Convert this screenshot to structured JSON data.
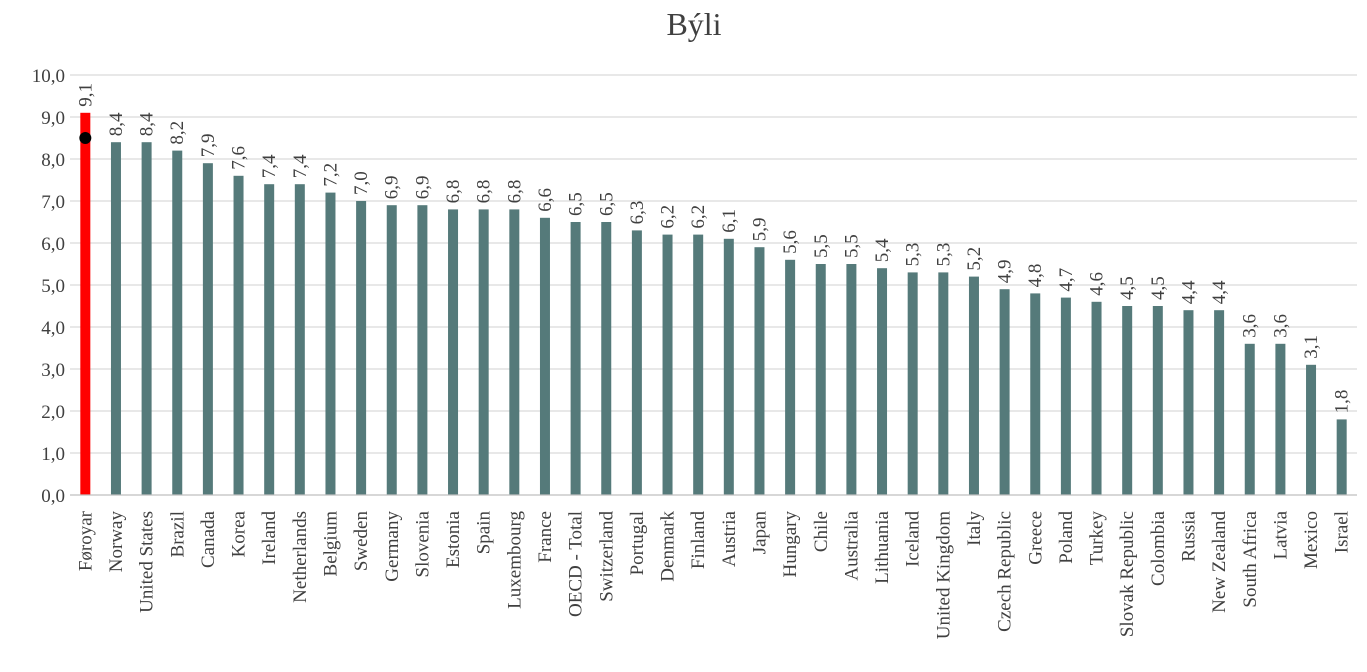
{
  "chart_data": {
    "type": "bar",
    "title": "Býli",
    "xlabel": "",
    "ylabel": "",
    "ylim": [
      0,
      10
    ],
    "ytick_step": 1,
    "ytick_labels": [
      "0,0",
      "1,0",
      "2,0",
      "3,0",
      "4,0",
      "5,0",
      "6,0",
      "7,0",
      "8,0",
      "9,0",
      "10,0"
    ],
    "grid": true,
    "legend": "none",
    "categories": [
      "Føroyar",
      "Norway",
      "United States",
      "Brazil",
      "Canada",
      "Korea",
      "Ireland",
      "Netherlands",
      "Belgium",
      "Sweden",
      "Germany",
      "Slovenia",
      "Estonia",
      "Spain",
      "Luxembourg",
      "France",
      "OECD - Total",
      "Switzerland",
      "Portugal",
      "Denmark",
      "Finland",
      "Austria",
      "Japan",
      "Hungary",
      "Chile",
      "Australia",
      "Lithuania",
      "Iceland",
      "United Kingdom",
      "Italy",
      "Czech Republic",
      "Greece",
      "Poland",
      "Turkey",
      "Slovak Republic",
      "Colombia",
      "Russia",
      "New Zealand",
      "South Africa",
      "Latvia",
      "Mexico",
      "Israel"
    ],
    "values": [
      9.1,
      8.4,
      8.4,
      8.2,
      7.9,
      7.6,
      7.4,
      7.4,
      7.2,
      7.0,
      6.9,
      6.9,
      6.8,
      6.8,
      6.8,
      6.6,
      6.5,
      6.5,
      6.3,
      6.2,
      6.2,
      6.1,
      5.9,
      5.6,
      5.5,
      5.5,
      5.4,
      5.3,
      5.3,
      5.2,
      4.9,
      4.8,
      4.7,
      4.6,
      4.5,
      4.5,
      4.4,
      4.4,
      3.6,
      3.6,
      3.1,
      1.8
    ],
    "data_labels": [
      "9,1",
      "8,4",
      "8,4",
      "8,2",
      "7,9",
      "7,6",
      "7,4",
      "7,4",
      "7,2",
      "7,0",
      "6,9",
      "6,9",
      "6,8",
      "6,8",
      "6,8",
      "6,6",
      "6,5",
      "6,5",
      "6,3",
      "6,2",
      "6,2",
      "6,1",
      "5,9",
      "5,6",
      "5,5",
      "5,5",
      "5,4",
      "5,3",
      "5,3",
      "5,2",
      "4,9",
      "4,8",
      "4,7",
      "4,6",
      "4,5",
      "4,5",
      "4,4",
      "4,4",
      "3,6",
      "3,6",
      "3,1",
      "1,8"
    ],
    "highlight": {
      "category": "Føroyar",
      "marker_value": 8.5
    },
    "colors": {
      "bar": "#557a7a",
      "highlight": "#ff0000",
      "marker": "#000000"
    }
  }
}
